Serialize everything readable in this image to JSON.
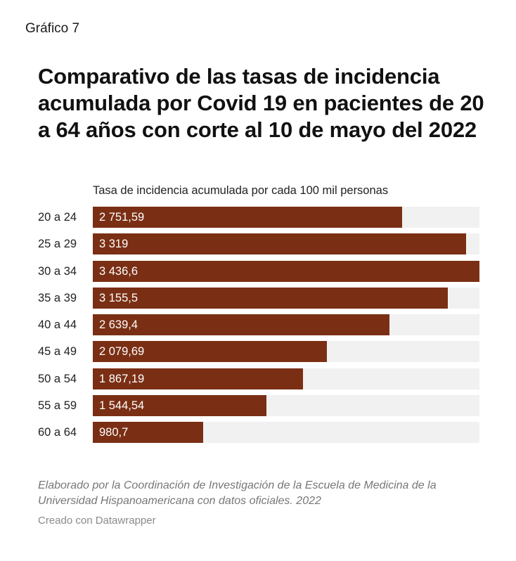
{
  "kicker": "Gráfico 7",
  "title": "Comparativo de las tasas de incidencia acumulada por Covid 19 en pacientes de 20 a 64 años con corte al 10 de mayo del 2022",
  "subtitle": "Tasa de incidencia acumulada por cada 100 mil personas",
  "source": "Elaborado por la Coordinación de Investigación de la Escuela de Medicina de la Universidad Hispanoamericana con datos oficiales. 2022",
  "credit": "Creado con Datawrapper",
  "colors": {
    "bar": "#7a2f14",
    "track": "#f1f1f1"
  },
  "chart_data": {
    "type": "bar",
    "orientation": "horizontal",
    "title": "Comparativo de las tasas de incidencia acumulada por Covid 19 en pacientes de 20 a 64 años con corte al 10 de mayo del 2022",
    "subtitle": "Tasa de incidencia acumulada por cada 100 mil personas",
    "categories": [
      "20 a 24",
      "25 a 29",
      "30 a 34",
      "35 a 39",
      "40 a 44",
      "45 a 49",
      "50 a 54",
      "55 a 59",
      "60 a 64"
    ],
    "values": [
      2751.59,
      3319,
      3436.6,
      3155.5,
      2639.4,
      2079.69,
      1867.19,
      1544.54,
      980.7
    ],
    "value_labels": [
      "2 751,59",
      "3 319",
      "3 436,6",
      "3 155,5",
      "2 639,4",
      "2 079,69",
      "1 867,19",
      "1 544,54",
      "980,7"
    ],
    "xlim": [
      0,
      3436.6
    ],
    "grid": false,
    "legend": "none"
  }
}
